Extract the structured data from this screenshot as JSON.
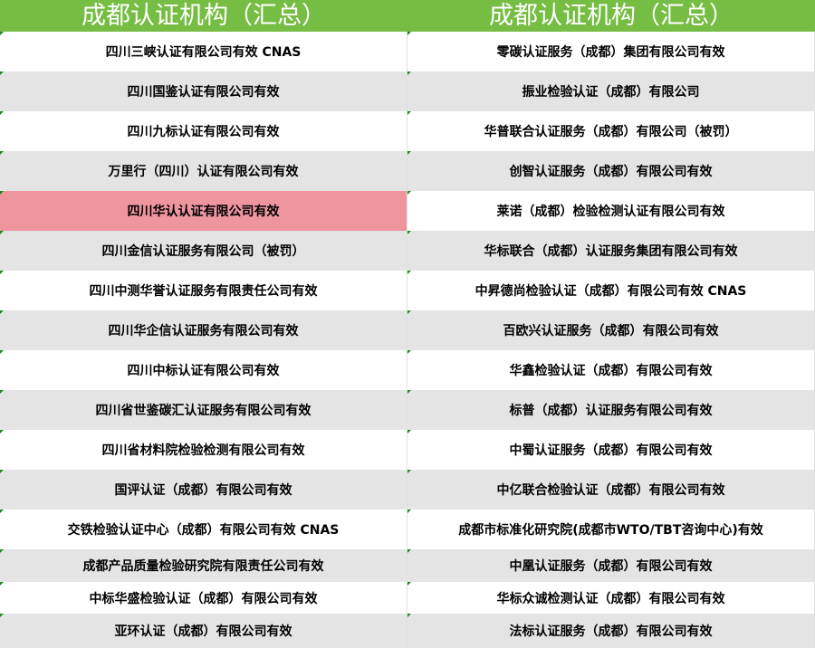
{
  "colors": {
    "header": "#76bd43",
    "highlight": "#ef959e"
  },
  "header": [
    "成都认证机构（汇总）",
    "成都认证机构（汇总）"
  ],
  "rows": [
    [
      "四川三峡认证有限公司有效  CNAS",
      "零碳认证服务（成都）集团有限公司有效"
    ],
    [
      "四川国鉴认证有限公司有效",
      "振业检验认证（成都）有限公司"
    ],
    [
      "四川九标认证有限公司有效",
      "华普联合认证服务（成都）有限公司（被罚）"
    ],
    [
      "万里行（四川）认证有限公司有效",
      "创智认证服务（成都）有限公司有效"
    ],
    [
      "四川华认认证有限公司有效",
      "莱诺（成都）检验检测认证有限公司有效"
    ],
    [
      "四川金信认证服务有限公司（被罚）",
      "华标联合（成都）认证服务集团有限公司有效"
    ],
    [
      "四川中测华誉认证服务有限责任公司有效",
      "中昇德尚检验认证（成都）有限公司有效  CNAS"
    ],
    [
      "四川华企信认证服务有限公司有效",
      "百欧兴认证服务（成都）有限公司有效"
    ],
    [
      "四川中标认证有限公司有效",
      "华鑫检验认证（成都）有限公司有效"
    ],
    [
      "四川省世鉴碳汇认证服务有限公司有效",
      "标普（成都）认证服务有限公司有效"
    ],
    [
      "四川省材料院检验检测有限公司有效",
      "中蜀认证服务（成都）有限公司有效"
    ],
    [
      "国评认证（成都）有限公司有效",
      "中亿联合检验认证（成都）有限公司有效"
    ],
    [
      "交铁检验认证中心（成都）有限公司有效  CNAS",
      "成都市标准化研究院(成都市WTO/TBT咨询中心)有效"
    ],
    [
      "成都产品质量检验研究院有限责任公司有效",
      "中凰认证服务（成都）有限公司有效"
    ],
    [
      "中标华盛检验认证（成都）有限公司有效",
      "华标众诚检测认证（成都）有限公司有效"
    ],
    [
      "亚环认证（成都）有限公司有效",
      "法标认证服务（成都）有限公司有效"
    ]
  ],
  "highlighted_cell": {
    "row": 4,
    "col": 0
  }
}
